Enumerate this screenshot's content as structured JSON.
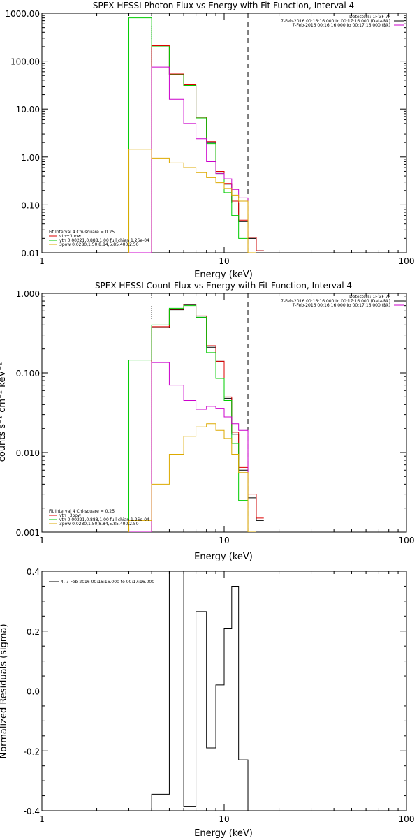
{
  "chart_data": [
    {
      "type": "line",
      "title": "SPEX HESSI Photon Flux vs Energy with Fit Function, Interval 4",
      "xlabel": "Energy (keV)",
      "ylabel": "",
      "xscale": "log",
      "yscale": "log",
      "xlim": [
        1,
        100
      ],
      "ylim": [
        0.01,
        1000
      ],
      "xticks": [
        "1",
        "10",
        "100"
      ],
      "yticks": [
        {
          "v": 0.01,
          "t": "0.01"
        },
        {
          "v": 0.1,
          "t": "0.10"
        },
        {
          "v": 1,
          "t": "1.00"
        },
        {
          "v": 10,
          "t": "10.00"
        },
        {
          "v": 100,
          "t": "100.00"
        },
        {
          "v": 1000,
          "t": "1000.00"
        }
      ],
      "vlines": [
        {
          "x": 4.0,
          "style": "dotted"
        },
        {
          "x": 13.5,
          "style": "dashed"
        }
      ],
      "legend_top": [
        {
          "text": "Detectors: 1F 3F 7F",
          "color": ""
        },
        {
          "text": "7-Feb-2016 00:16:16.000 to 00:17:16.000 (Data-Bk)",
          "color": "#000000"
        },
        {
          "text": "7-Feb-2016 00:16:16.000 to 00:17:16.000 (Bk)",
          "color": "#cc00cc"
        }
      ],
      "legend_bottom": [
        {
          "text": "Fit Interval 4   Chi-square = 0.25",
          "color": ""
        },
        {
          "text": "vth+3pow",
          "color": "#dd0000"
        },
        {
          "text": "vth 0.00221,0.888,1.00   full chian 1.26e-04",
          "color": "#00cc00"
        },
        {
          "text": "3pow 0.0280,1.50,8.84,5.85,400,2.50",
          "color": "#ddaa00"
        }
      ],
      "edges": [
        3.0,
        4.0,
        5.0,
        6.0,
        7.0,
        8.0,
        9.0,
        10.0,
        11.0,
        12.0,
        13.5,
        15.0,
        16.5
      ],
      "series": [
        {
          "color": "#000000",
          "start": 1,
          "values": [
            200,
            52,
            31,
            6.5,
            2.0,
            0.48,
            0.27,
            0.11,
            0.045,
            0.02,
            0.011
          ]
        },
        {
          "color": "#dd0000",
          "start": 1,
          "values": [
            210,
            54,
            32,
            6.8,
            2.1,
            0.5,
            0.28,
            0.12,
            0.048,
            0.021,
            0.011
          ]
        },
        {
          "color": "#00cc00",
          "start": 0,
          "values": [
            800,
            200,
            52,
            31,
            6.5,
            1.9,
            0.45,
            0.18,
            0.06,
            0.02,
            0.01
          ]
        },
        {
          "color": "#cc00cc",
          "start": 0,
          "values": [
            0.001,
            75,
            16,
            5.0,
            2.4,
            0.8,
            0.45,
            0.35,
            0.21,
            0.14,
            0.01
          ]
        },
        {
          "color": "#ddaa00",
          "start": 0,
          "values": [
            1.45,
            0.95,
            0.75,
            0.6,
            0.47,
            0.37,
            0.29,
            0.22,
            0.16,
            0.12,
            0.01
          ]
        }
      ]
    },
    {
      "type": "line",
      "title": "SPEX HESSI Count Flux vs Energy with Fit Function, Interval 4",
      "xlabel": "Energy (keV)",
      "ylabel": "counts s⁻¹ cm⁻² keV⁻¹",
      "xscale": "log",
      "yscale": "log",
      "xlim": [
        1,
        100
      ],
      "ylim": [
        0.001,
        1
      ],
      "xticks": [
        "1",
        "10",
        "100"
      ],
      "yticks": [
        {
          "v": 0.001,
          "t": "0.001"
        },
        {
          "v": 0.01,
          "t": "0.010"
        },
        {
          "v": 0.1,
          "t": "0.100"
        },
        {
          "v": 1,
          "t": "1.000"
        }
      ],
      "vlines": [
        {
          "x": 4.0,
          "style": "dotted"
        },
        {
          "x": 13.5,
          "style": "dashed"
        }
      ],
      "legend_top": [
        {
          "text": "Detectors: 1F 3F 7F",
          "color": ""
        },
        {
          "text": "7-Feb-2016 00:16:16.000 to 00:17:16.000 (Data-Bk)",
          "color": "#000000"
        },
        {
          "text": "7-Feb-2016 00:16:16.000 to 00:17:16.000 (Bk)",
          "color": "#cc00cc"
        }
      ],
      "legend_bottom": [
        {
          "text": "Fit Interval 4   Chi-square = 0.25",
          "color": ""
        },
        {
          "text": "vth+3pow",
          "color": "#dd0000"
        },
        {
          "text": "vth 0.00221,0.888,1.00   full chian 1.26e-04",
          "color": "#00cc00"
        },
        {
          "text": "3pow 0.0280,1.50,8.84,5.85,400,2.50",
          "color": "#ddaa00"
        }
      ],
      "edges": [
        3.0,
        4.0,
        5.0,
        6.0,
        7.0,
        8.0,
        9.0,
        10.0,
        11.0,
        12.0,
        13.5,
        15.0,
        16.5
      ],
      "series": [
        {
          "color": "#000000",
          "start": 1,
          "values": [
            0.37,
            0.62,
            0.72,
            0.5,
            0.21,
            0.14,
            0.048,
            0.017,
            0.006,
            0.0027,
            0.0014
          ]
        },
        {
          "color": "#dd0000",
          "start": 1,
          "values": [
            0.38,
            0.63,
            0.73,
            0.52,
            0.22,
            0.14,
            0.05,
            0.018,
            0.0065,
            0.003,
            0.0015
          ]
        },
        {
          "color": "#00cc00",
          "start": 0,
          "values": [
            0.145,
            0.4,
            0.65,
            0.7,
            0.5,
            0.18,
            0.085,
            0.045,
            0.013,
            0.0025,
            0.001
          ]
        },
        {
          "color": "#cc00cc",
          "start": 0,
          "values": [
            0.001,
            0.135,
            0.07,
            0.045,
            0.035,
            0.038,
            0.036,
            0.028,
            0.023,
            0.019,
            0.001
          ]
        },
        {
          "color": "#ddaa00",
          "start": 0,
          "values": [
            0.0014,
            0.004,
            0.0095,
            0.016,
            0.021,
            0.023,
            0.019,
            0.015,
            0.0095,
            0.0056,
            0.001
          ]
        }
      ]
    },
    {
      "type": "line",
      "title": "",
      "xlabel": "Energy (keV)",
      "ylabel": "Normalized Residuals (sigma)",
      "xscale": "log",
      "yscale": "linear",
      "xlim": [
        1,
        100
      ],
      "ylim": [
        -0.4,
        0.4
      ],
      "xticks": [
        "1",
        "10",
        "100"
      ],
      "yticks": [
        {
          "v": -0.4,
          "t": "-0.4"
        },
        {
          "v": -0.2,
          "t": "-0.2"
        },
        {
          "v": 0,
          "t": "0.0"
        },
        {
          "v": 0.2,
          "t": "0.2"
        },
        {
          "v": 0.4,
          "t": "0.4"
        }
      ],
      "legend_top_left": {
        "text": "4.  7-Feb-2016 00:16:16.000 to 00:17:16.000",
        "color": "#000000"
      },
      "residual_edges": [
        4.0,
        5.0,
        6.0,
        7.0,
        8.0,
        9.0,
        10.0,
        11.0,
        12.0,
        13.5
      ],
      "residuals": [
        -0.345,
        0.4,
        -0.385,
        0.265,
        -0.19,
        0.02,
        0.21,
        0.35,
        -0.23
      ]
    }
  ]
}
